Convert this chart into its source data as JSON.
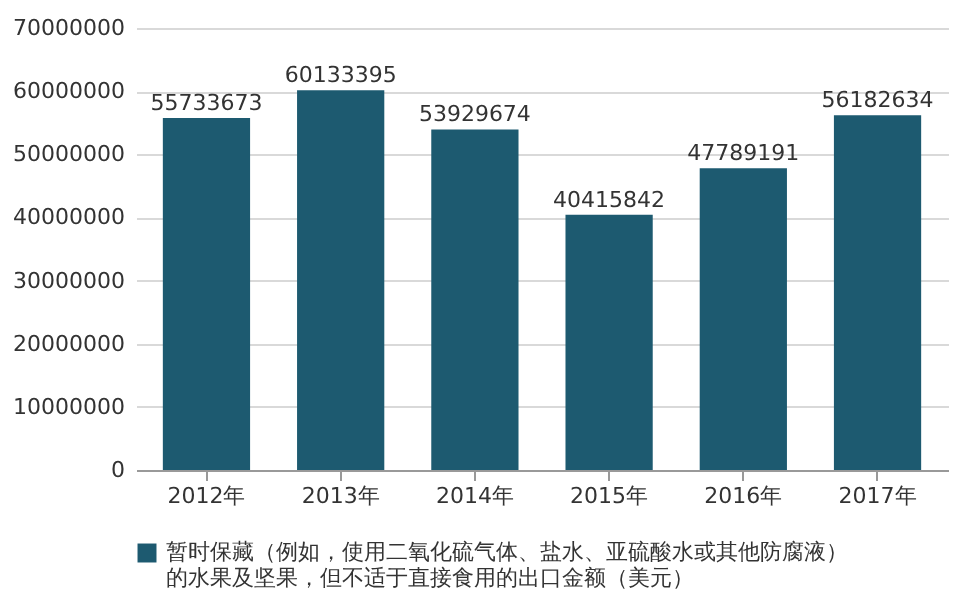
{
  "chart_data": {
    "type": "bar",
    "categories": [
      "2012年",
      "2013年",
      "2014年",
      "2015年",
      "2016年",
      "2017年"
    ],
    "series": [
      {
        "name": "暂时保藏（例如，使用二氧化硫气体、盐水、亚硫酸水或其他防腐液）的水果及坚果，但不适于直接食用的出口金额（美元）",
        "color": "#1d5a70",
        "values": [
          55733673,
          60133395,
          53929674,
          40415842,
          47789191,
          56182634
        ]
      }
    ],
    "ylim": [
      0,
      70000000
    ],
    "yticks": [
      0,
      10000000,
      20000000,
      30000000,
      40000000,
      50000000,
      60000000,
      70000000
    ],
    "grid": "y",
    "legend": "bottom",
    "data_labels": true
  }
}
